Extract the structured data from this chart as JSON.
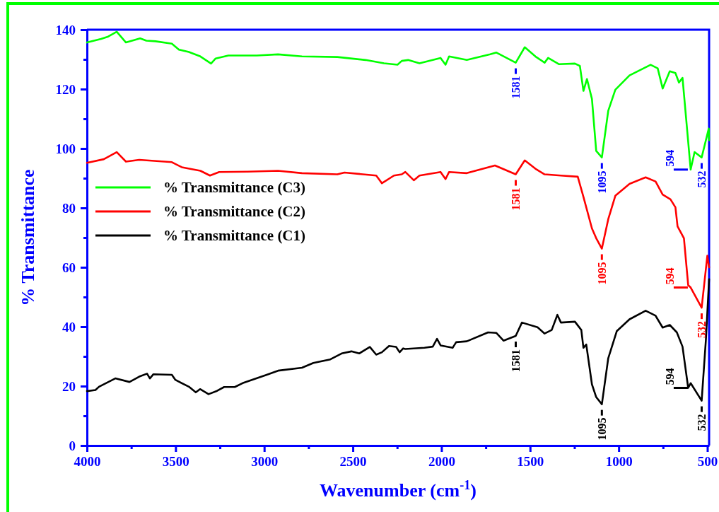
{
  "chart_data": {
    "type": "line",
    "xlabel": "Wavenumber (cm$^{-1}$)",
    "ylabel": "% Transmittance",
    "xlim": [
      4000,
      490
    ],
    "ylim": [
      0,
      140
    ],
    "xticks": [
      4000,
      {
        "value": 3750,
        "label": null
      },
      3500,
      {
        "value": 3250,
        "label": null
      },
      3000,
      {
        "value": 2750,
        "label": null
      },
      2500,
      {
        "value": 2250,
        "label": null
      },
      2000,
      {
        "value": 1750,
        "label": null
      },
      1500,
      {
        "value": 1250,
        "label": null
      },
      1000,
      {
        "value": 750,
        "label": null
      },
      500
    ],
    "yticks": [
      0,
      {
        "value": 10,
        "label": null
      },
      20,
      {
        "value": 30,
        "label": null
      },
      40,
      {
        "value": 50,
        "label": null
      },
      60,
      {
        "value": 70,
        "label": null
      },
      80,
      {
        "value": 90,
        "label": null
      },
      100,
      {
        "value": 110,
        "label": null
      },
      120,
      {
        "value": 130,
        "label": null
      },
      140
    ],
    "legend": "left",
    "series": [
      {
        "name": "% Transmittance (C3)",
        "color": "#00ff00",
        "x": [
          4000,
          3920,
          3880,
          3832,
          3780,
          3700,
          3665,
          3613,
          3521,
          3481,
          3425,
          3360,
          3300,
          3274,
          3202,
          3042,
          2922,
          2787,
          2587,
          2428,
          2324,
          2248,
          2224,
          2188,
          2124,
          2005,
          1977,
          1957,
          1857,
          1725,
          1690,
          1581,
          1530,
          1470,
          1418,
          1398,
          1338,
          1247,
          1219,
          1199,
          1179,
          1151,
          1127,
          1095,
          1059,
          1019,
          939,
          820,
          780,
          752,
          712,
          680,
          660,
          640,
          594,
          572,
          532,
          492,
          490
        ],
        "values": [
          135.7,
          136.9,
          137.7,
          139.3,
          135.7,
          137.1,
          136.3,
          136.1,
          135.3,
          133.3,
          132.5,
          131.0,
          128.6,
          130.3,
          131.3,
          131.3,
          131.7,
          131.0,
          130.8,
          129.8,
          128.7,
          128.2,
          129.5,
          129.8,
          128.7,
          130.5,
          128.2,
          131.0,
          129.8,
          131.7,
          132.3,
          128.9,
          134.1,
          131.0,
          128.9,
          130.5,
          128.4,
          128.6,
          127.8,
          119.4,
          123.4,
          116.7,
          99.2,
          97.0,
          112.7,
          119.8,
          124.6,
          128.2,
          127.0,
          120.2,
          126.0,
          125.4,
          122.2,
          123.8,
          92.9,
          98.8,
          97.0,
          106.7,
          102.8
        ]
      },
      {
        "name": "% Transmittance (C2)",
        "color": "#ff0000",
        "x": [
          4000,
          3905,
          3832,
          3780,
          3705,
          3521,
          3465,
          3360,
          3306,
          3254,
          3094,
          2922,
          2787,
          2587,
          2547,
          2368,
          2336,
          2268,
          2224,
          2204,
          2156,
          2124,
          2005,
          1977,
          1957,
          1857,
          1698,
          1581,
          1530,
          1470,
          1418,
          1326,
          1231,
          1199,
          1151,
          1127,
          1095,
          1059,
          1019,
          939,
          848,
          792,
          752,
          708,
          680,
          668,
          632,
          608,
          594,
          532,
          500,
          490
        ],
        "values": [
          95.2,
          96.4,
          98.8,
          95.6,
          96.2,
          95.4,
          93.7,
          92.5,
          90.9,
          92.1,
          92.2,
          92.5,
          91.7,
          91.3,
          91.9,
          90.9,
          88.3,
          90.9,
          91.3,
          92.1,
          89.3,
          90.9,
          92.1,
          89.7,
          92.1,
          91.7,
          94.3,
          91.3,
          96.0,
          93.2,
          91.3,
          90.9,
          90.5,
          83.7,
          73.1,
          69.8,
          66.3,
          76.2,
          84.1,
          88.1,
          90.3,
          88.9,
          84.5,
          82.9,
          80.2,
          73.8,
          69.8,
          54.0,
          53.2,
          46.4,
          63.9,
          60.0
        ]
      },
      {
        "name": "% Transmittance (C1)",
        "color": "#000000",
        "x": [
          4000,
          3952,
          3932,
          3840,
          3760,
          3705,
          3661,
          3645,
          3625,
          3521,
          3501,
          3425,
          3386,
          3362,
          3314,
          3266,
          3226,
          3166,
          3122,
          2986,
          2922,
          2787,
          2723,
          2627,
          2563,
          2508,
          2464,
          2404,
          2368,
          2336,
          2296,
          2256,
          2236,
          2216,
          2204,
          2096,
          2049,
          2025,
          2005,
          1937,
          1917,
          1857,
          1737,
          1690,
          1650,
          1581,
          1546,
          1458,
          1418,
          1378,
          1346,
          1326,
          1247,
          1211,
          1199,
          1183,
          1151,
          1127,
          1095,
          1059,
          1011,
          939,
          848,
          792,
          752,
          712,
          672,
          640,
          608,
          594,
          532,
          508,
          490
        ],
        "values": [
          18.3,
          18.7,
          19.8,
          22.6,
          21.4,
          23.2,
          24.2,
          22.6,
          24.0,
          23.8,
          22.1,
          19.8,
          17.9,
          19.0,
          17.3,
          18.4,
          19.7,
          19.7,
          21.0,
          23.8,
          25.2,
          26.2,
          27.8,
          29.0,
          31.0,
          31.7,
          31.0,
          33.2,
          30.6,
          31.4,
          33.5,
          33.2,
          31.4,
          32.7,
          32.5,
          32.9,
          33.3,
          35.9,
          33.7,
          32.9,
          34.8,
          35.1,
          38.1,
          37.9,
          35.3,
          36.9,
          41.4,
          39.8,
          37.7,
          38.9,
          44.0,
          41.4,
          41.7,
          38.9,
          32.9,
          34.0,
          20.6,
          16.3,
          13.9,
          29.4,
          38.5,
          42.5,
          45.4,
          43.7,
          39.7,
          40.6,
          38.1,
          33.3,
          19.4,
          21.0,
          15.1,
          35.7,
          56.0
        ]
      }
    ],
    "annotations": [
      {
        "text": "1581",
        "x": 1581,
        "y": 128.9
      },
      {
        "text": "1095",
        "x": 1095,
        "y": 97.0
      },
      {
        "text": "594",
        "x": 594,
        "y": 92.9
      },
      {
        "text": "532",
        "x": 532,
        "y": 97.0
      },
      {
        "text": "1581",
        "x": 1581,
        "y": 91.3
      },
      {
        "text": "1095",
        "x": 1095,
        "y": 66.3
      },
      {
        "text": "594",
        "x": 594,
        "y": 53.2
      },
      {
        "text": "532",
        "x": 532,
        "y": 46.4
      },
      {
        "text": "1581",
        "x": 1581,
        "y": 36.9
      },
      {
        "text": "1095",
        "x": 1095,
        "y": 13.9
      },
      {
        "text": "594",
        "x": 594,
        "y": 19.4
      },
      {
        "text": "532",
        "x": 532,
        "y": 15.1
      }
    ]
  }
}
